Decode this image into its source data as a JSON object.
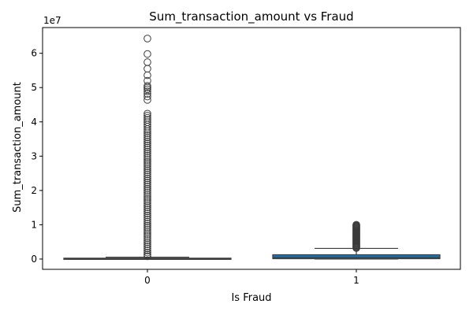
{
  "chart_data": {
    "type": "box",
    "title": "Sum_transaction_amount vs Fraud",
    "xlabel": "Is Fraud",
    "ylabel": "Sum_transaction_amount",
    "y_scale_label": "1e7",
    "ylim": [
      -3000000,
      67500000
    ],
    "yticks": [
      0,
      10000000,
      20000000,
      30000000,
      40000000,
      50000000,
      60000000
    ],
    "ytick_labels": [
      "0",
      "1",
      "2",
      "3",
      "4",
      "5",
      "6"
    ],
    "categories": [
      "0",
      "1"
    ],
    "grid": false,
    "colors": {
      "box_0": "#1f77b4",
      "box_1": "#1f77b4",
      "line": "#3a3a3a"
    },
    "boxes": [
      {
        "category": "0",
        "q1": 30000,
        "median": 90000,
        "q3": 250000,
        "whisker_low": 0,
        "whisker_high": 550000,
        "outliers": [
          64300000,
          59800000,
          57400000,
          55500000,
          53600000,
          52000000,
          50500000,
          50000000,
          49500000,
          48900000,
          48200000,
          47400000,
          46400000,
          42400000,
          41800000,
          41200000,
          40600000,
          39900000,
          39200000,
          38600000,
          37900000,
          37300000,
          36700000,
          36100000,
          35500000,
          34900000,
          34300000,
          33700000,
          33100000,
          32500000,
          31900000,
          31300000,
          30700000,
          30100000,
          29500000,
          28900000,
          28300000,
          27700000,
          27100000,
          26500000,
          25900000,
          25300000,
          24700000,
          24100000,
          23500000,
          22900000,
          22300000,
          21700000,
          21100000,
          20500000,
          19900000,
          19300000,
          18700000,
          18100000,
          17500000,
          16900000,
          16300000,
          15700000,
          15100000,
          14500000,
          13900000,
          13300000,
          12700000,
          12100000,
          11500000,
          10900000,
          10300000,
          9700000,
          9100000,
          8500000,
          7900000,
          7300000,
          6700000,
          6100000,
          5500000,
          4900000,
          4300000,
          3700000,
          3100000,
          2500000,
          1900000,
          1300000,
          800000
        ]
      },
      {
        "category": "1",
        "q1": 100000,
        "median": 500000,
        "q3": 1250000,
        "whisker_low": 0,
        "whisker_high": 3100000,
        "outliers": [
          10000000,
          9800000,
          9600000,
          9400000,
          9200000,
          9000000,
          8800000,
          8600000,
          8400000,
          8200000,
          8000000,
          7800000,
          7600000,
          7400000,
          7200000,
          7000000,
          6800000,
          6600000,
          6400000,
          6200000,
          6000000,
          5800000,
          5600000,
          5400000,
          5200000,
          5000000,
          4800000,
          4600000,
          4400000,
          4200000,
          4000000,
          3800000,
          3600000,
          3400000,
          3200000
        ]
      }
    ]
  }
}
